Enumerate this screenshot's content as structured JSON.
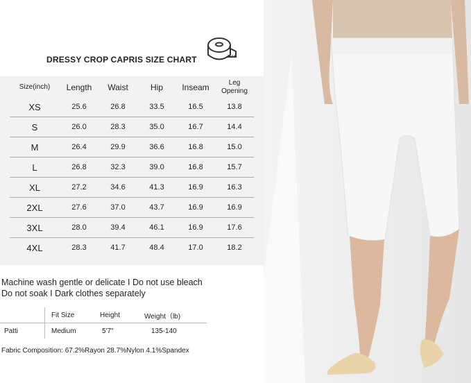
{
  "chart": {
    "title": "DRESSY CROP CAPRIS SIZE CHART",
    "icon": "measuring-tape-icon",
    "headers": [
      "Size(inch)",
      "Length",
      "Waist",
      "Hip",
      "Inseam",
      "Leg Opening"
    ],
    "rows": [
      [
        "XS",
        "25.6",
        "26.8",
        "33.5",
        "16.5",
        "13.8"
      ],
      [
        "S",
        "26.0",
        "28.3",
        "35.0",
        "16.7",
        "14.4"
      ],
      [
        "M",
        "26.4",
        "29.9",
        "36.6",
        "16.8",
        "15.0"
      ],
      [
        "L",
        "26.8",
        "32.3",
        "39.0",
        "16.8",
        "15.7"
      ],
      [
        "XL",
        "27.2",
        "34.6",
        "41.3",
        "16.9",
        "16.3"
      ],
      [
        "2XL",
        "27.6",
        "37.0",
        "43.7",
        "16.9",
        "16.9"
      ],
      [
        "3XL",
        "28.0",
        "39.4",
        "46.1",
        "16.9",
        "17.6"
      ],
      [
        "4XL",
        "28.3",
        "41.7",
        "48.4",
        "17.0",
        "18.2"
      ]
    ]
  },
  "care": {
    "line1": "Machine wash gentle or delicate I Do not use bleach",
    "line2": "Do not soak I Dark clothes separately"
  },
  "fit": {
    "headers": [
      "",
      "Fit Size",
      "Height",
      "Weight（lb)"
    ],
    "row": [
      "Patti",
      "Medium",
      "5'7\"",
      "135-140"
    ]
  },
  "fabric": "Fabric Composition:  67.2%Rayon 28.7%Nylon 4.1%Spandex",
  "colors": {
    "panel": "#f2f2f2",
    "pants": "#f7f7f5",
    "top": "#d9c4b0"
  }
}
